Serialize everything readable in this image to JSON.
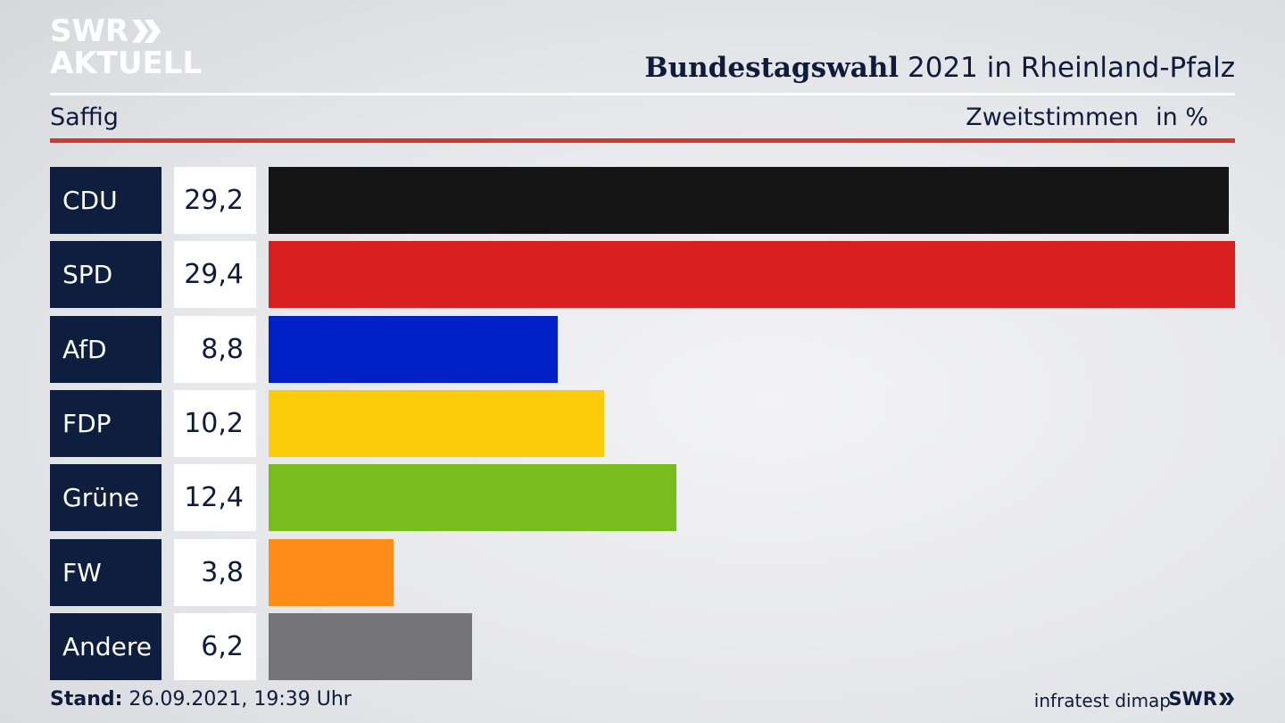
{
  "logo": {
    "line1": "SWR",
    "line2": "AKTUELL"
  },
  "header": {
    "title_bold": "Bundestagswahl",
    "title_rest": " 2021 in Rheinland-Pfalz",
    "region": "Saffig",
    "vote_type": "Zweitstimmen",
    "unit": "in %"
  },
  "chart_data": {
    "type": "bar",
    "orientation": "horizontal",
    "title": "Bundestagswahl 2021 in Rheinland-Pfalz",
    "subtitle": "Saffig",
    "xlabel": "Zweitstimmen in %",
    "categories": [
      "CDU",
      "SPD",
      "AfD",
      "FDP",
      "Grüne",
      "FW",
      "Andere"
    ],
    "value_labels": [
      "29,2",
      "29,4",
      "8,8",
      "10,2",
      "12,4",
      "3,8",
      "6,2"
    ],
    "values": [
      29.2,
      29.4,
      8.8,
      10.2,
      12.4,
      3.8,
      6.2
    ],
    "colors": [
      "#141414",
      "#d82020",
      "#0020c8",
      "#fccb0a",
      "#78bc1e",
      "#fd8c19",
      "#747476"
    ],
    "max": 29.4
  },
  "footer": {
    "stand_label": "Stand:",
    "stand_value": " 26.09.2021, 19:39 Uhr",
    "source": "infratest dimap",
    "brand": "SWR"
  }
}
